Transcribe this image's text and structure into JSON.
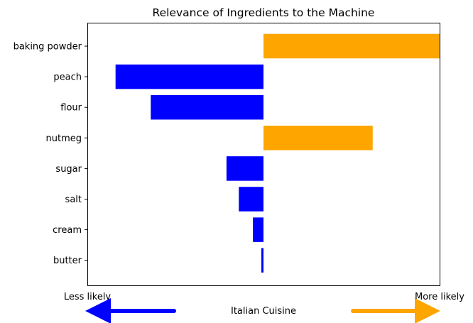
{
  "chart_data": {
    "type": "bar",
    "orientation": "horizontal",
    "title": "Relevance of Ingredients to the Machine",
    "categories": [
      "baking powder",
      "peach",
      "flour",
      "nutmeg",
      "sugar",
      "salt",
      "cream",
      "butter"
    ],
    "values": [
      0.5,
      -0.42,
      -0.32,
      0.31,
      -0.105,
      -0.07,
      -0.03,
      -0.006
    ],
    "xlim": [
      -0.5,
      0.5
    ],
    "positive_color": "#FFA500",
    "negative_color": "#0000FF",
    "left_label": "Less likely",
    "right_label": "More likely",
    "center_label": "Italian Cuisine",
    "grid": false
  }
}
